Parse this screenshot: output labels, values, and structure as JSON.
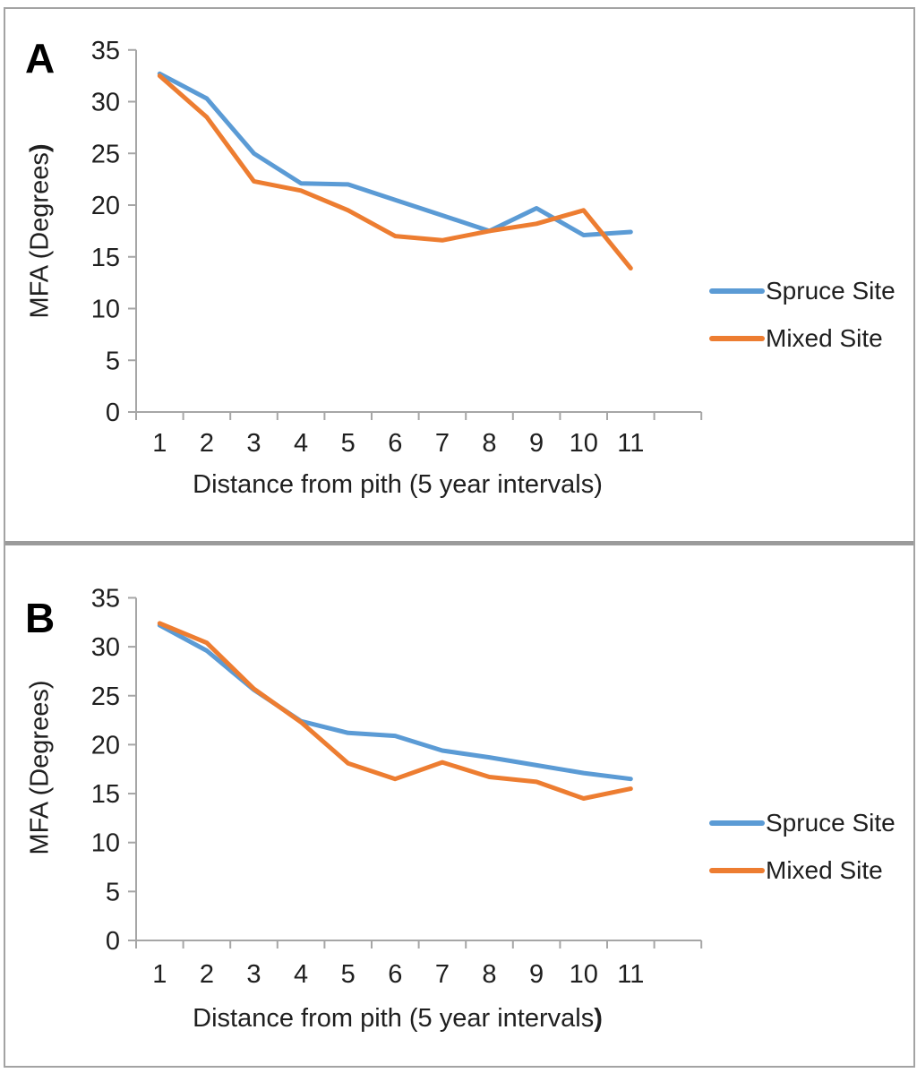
{
  "figure": {
    "background": "#ffffff",
    "border_color": "#a3a3a3",
    "divider_color": "#9b9b9b",
    "axis_color": "#a6a6a6",
    "text_color": "#1f1f1f"
  },
  "chart_data": [
    {
      "panel_label": "A",
      "type": "line",
      "x_ticks": [
        1,
        2,
        3,
        4,
        5,
        6,
        7,
        8,
        9,
        10,
        11
      ],
      "y_ticks": [
        0,
        5,
        10,
        15,
        20,
        25,
        30,
        35
      ],
      "ylim": [
        0,
        35
      ],
      "grid": false,
      "legend_position": "right",
      "xlabel_main": "Distance from pith (5 year intervals)",
      "xlabel_bold": "",
      "ylabel_main": "MFA (Degrees",
      "ylabel_bold": ")",
      "series": [
        {
          "name": "Spruce Site",
          "color": "#5B9BD5",
          "values": [
            32.7,
            30.3,
            25.0,
            22.1,
            22.0,
            20.5,
            19.0,
            17.5,
            19.7,
            17.1,
            17.4
          ]
        },
        {
          "name": "Mixed Site",
          "color": "#ED7D31",
          "values": [
            32.5,
            28.5,
            22.3,
            21.4,
            19.5,
            17.0,
            16.6,
            17.5,
            18.2,
            19.5,
            13.9
          ]
        }
      ]
    },
    {
      "panel_label": "B",
      "type": "line",
      "x_ticks": [
        1,
        2,
        3,
        4,
        5,
        6,
        7,
        8,
        9,
        10,
        11
      ],
      "y_ticks": [
        0,
        5,
        10,
        15,
        20,
        25,
        30,
        35
      ],
      "ylim": [
        0,
        35
      ],
      "grid": false,
      "legend_position": "right",
      "xlabel_main": "Distance from pith (5 year intervals",
      "xlabel_bold": ")",
      "ylabel_main": "MFA (Degrees)",
      "ylabel_bold": "",
      "series": [
        {
          "name": "Spruce Site",
          "color": "#5B9BD5",
          "values": [
            32.2,
            29.6,
            25.6,
            22.4,
            21.2,
            20.9,
            19.4,
            18.7,
            17.9,
            17.1,
            16.5
          ]
        },
        {
          "name": "Mixed Site",
          "color": "#ED7D31",
          "values": [
            32.4,
            30.4,
            25.7,
            22.3,
            18.1,
            16.5,
            18.2,
            16.7,
            16.2,
            14.5,
            15.5
          ]
        }
      ]
    }
  ]
}
